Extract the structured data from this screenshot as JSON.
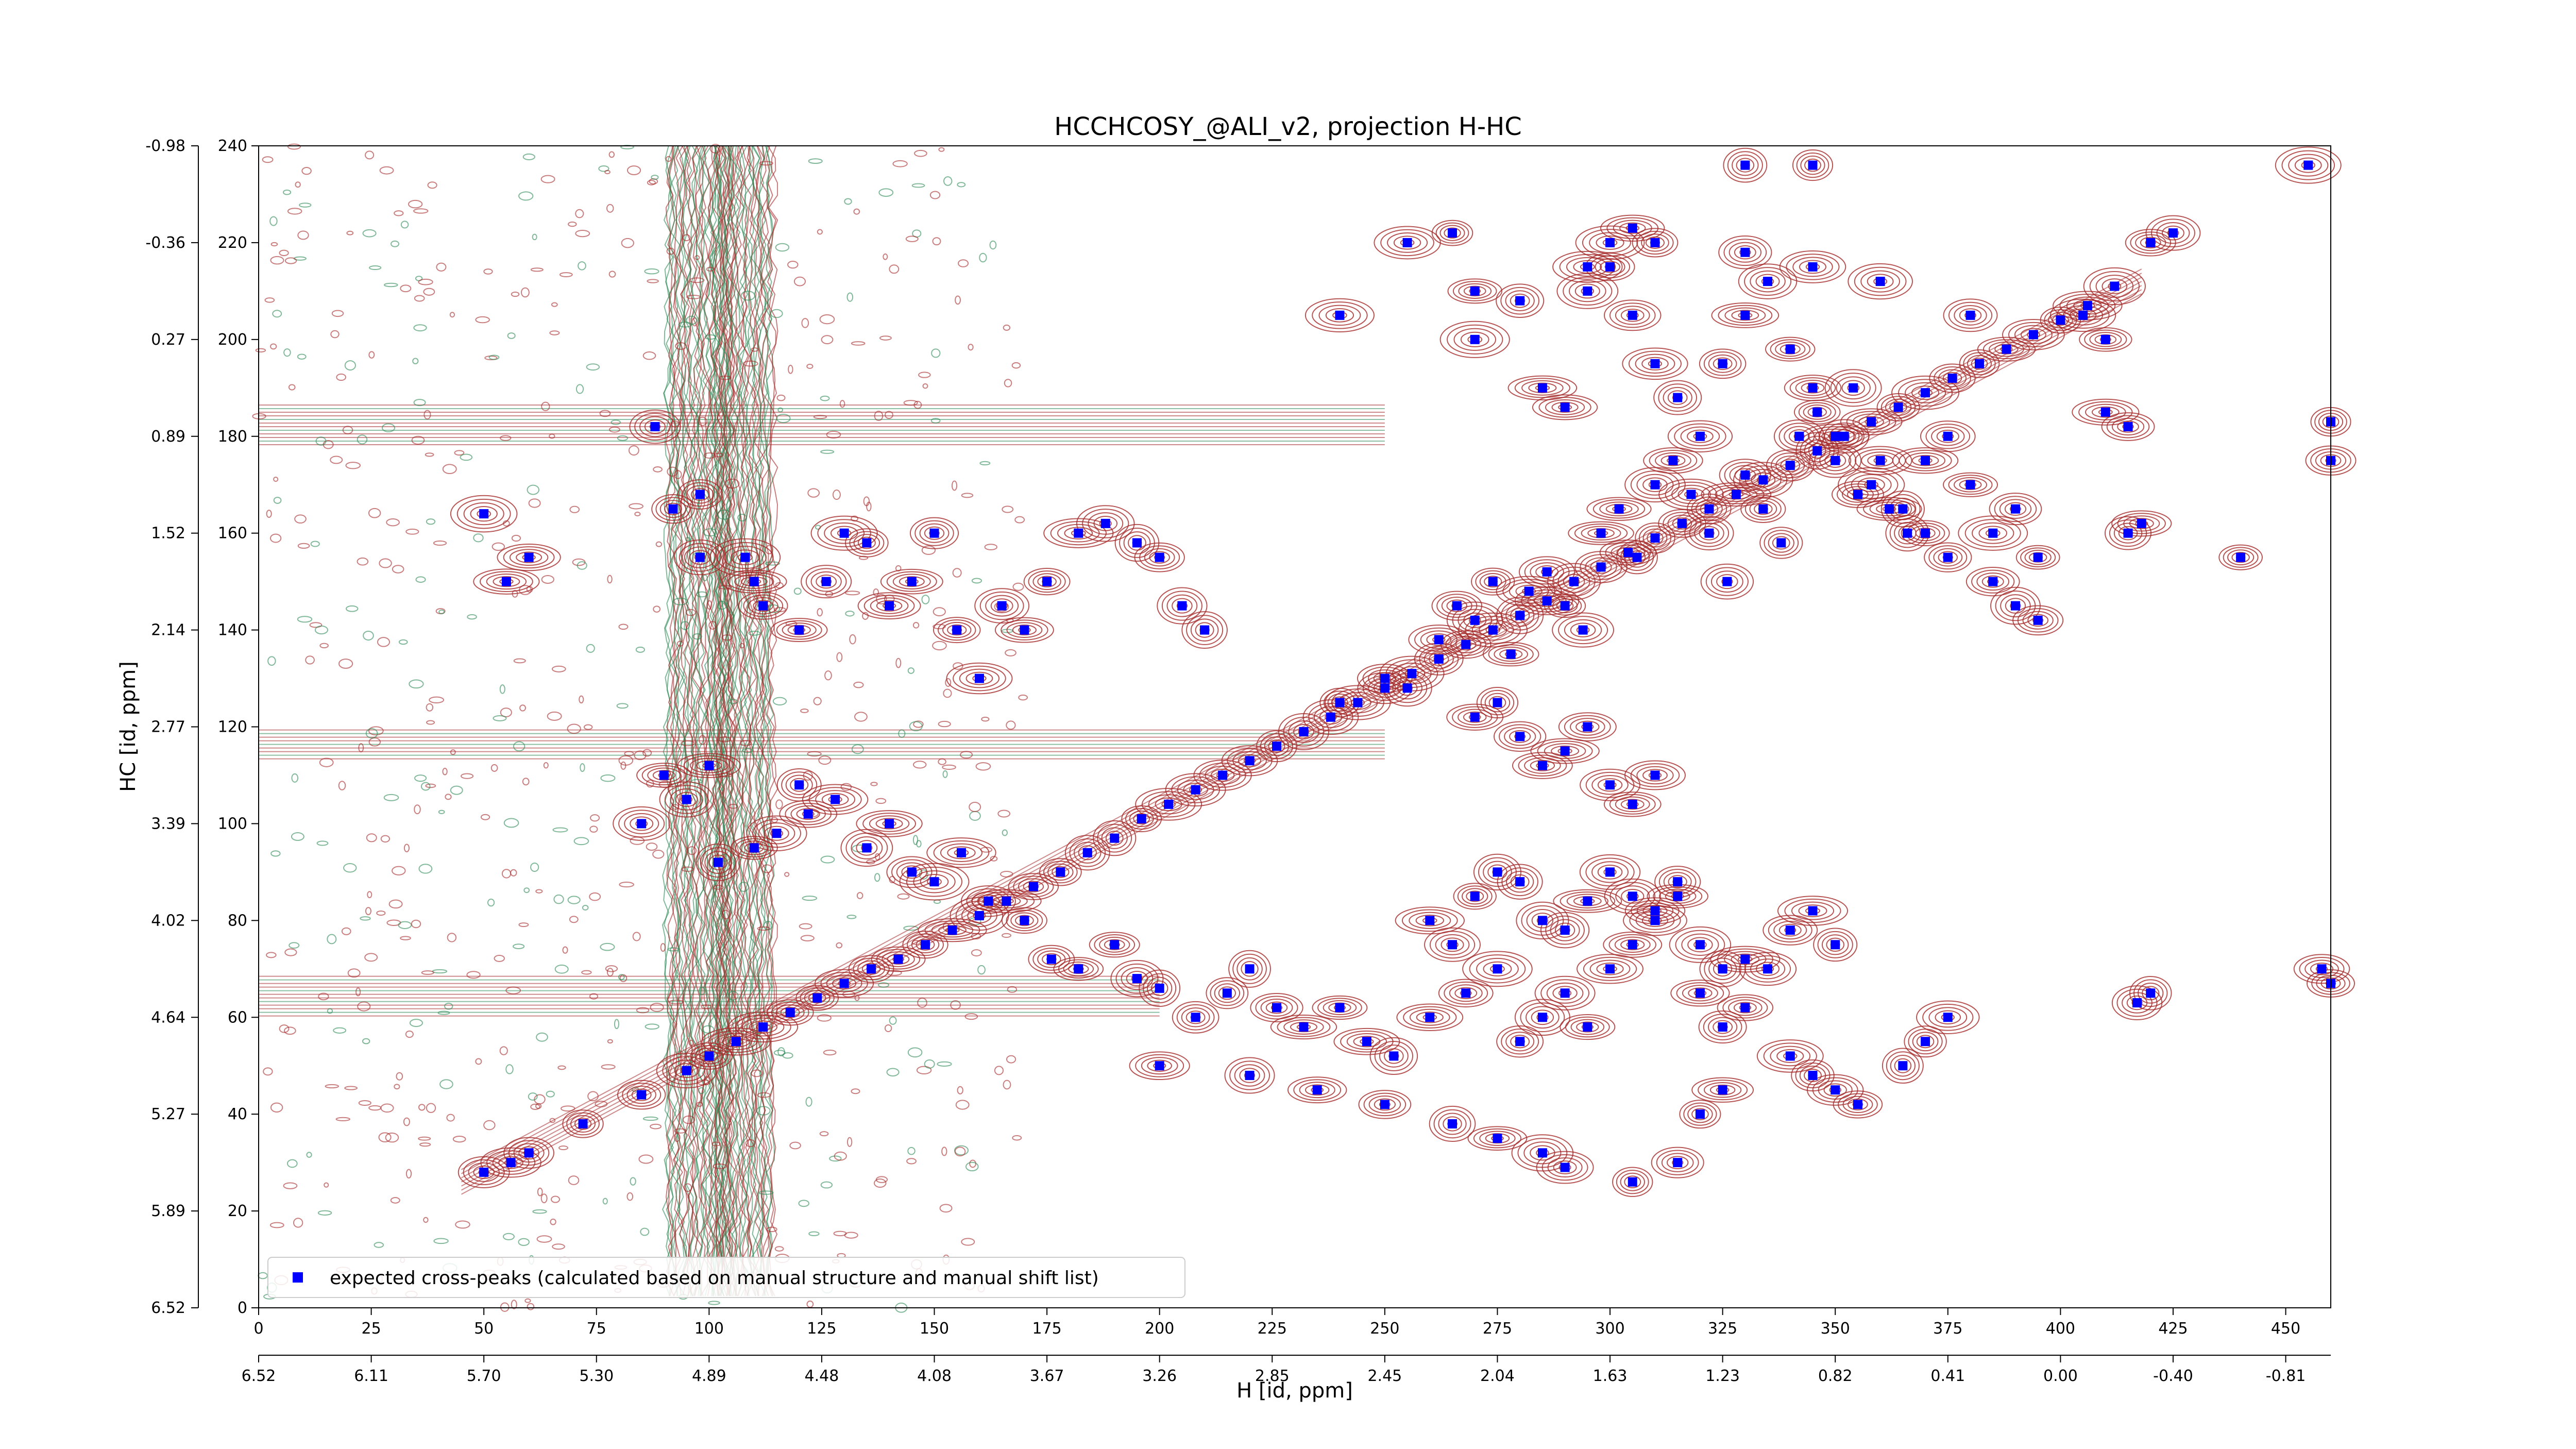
{
  "chart_data": {
    "type": "scatter",
    "title": "HCCHCOSY_@ALI_v2, projection H-HC",
    "xlabel": "H [id, ppm]",
    "ylabel": "HC [id, ppm]",
    "x_index_range": [
      0,
      460
    ],
    "y_index_range": [
      0,
      240
    ],
    "x_index_ticks": [
      0,
      25,
      50,
      75,
      100,
      125,
      150,
      175,
      200,
      225,
      250,
      275,
      300,
      325,
      350,
      375,
      400,
      425,
      450
    ],
    "y_index_ticks": [
      0,
      20,
      40,
      60,
      80,
      100,
      120,
      140,
      160,
      180,
      200,
      220,
      240
    ],
    "x_ppm_tick_labels": [
      "6.52",
      "6.11",
      "5.70",
      "5.30",
      "4.89",
      "4.48",
      "4.08",
      "3.67",
      "3.26",
      "2.85",
      "2.45",
      "2.04",
      "1.63",
      "1.23",
      "0.82",
      "0.41",
      "0.00",
      "-0.40",
      "-0.81"
    ],
    "y_ppm_tick_labels": [
      "6.52",
      "5.89",
      "5.27",
      "4.64",
      "4.02",
      "3.39",
      "2.77",
      "2.14",
      "1.52",
      "0.89",
      "0.27",
      "-0.36",
      "-0.98"
    ],
    "grid": false,
    "legend_position": "bottom-left",
    "contour_colors": {
      "positive": "#a52a2a",
      "negative": "#2e8b57"
    },
    "series": [
      {
        "name": "expected cross-peaks (calculated based on manual structure and manual shift list)",
        "marker": "square",
        "color": "#0000ff",
        "points": [
          [
            50,
            28
          ],
          [
            56,
            30
          ],
          [
            60,
            32
          ],
          [
            72,
            38
          ],
          [
            85,
            44
          ],
          [
            95,
            49
          ],
          [
            100,
            52
          ],
          [
            106,
            55
          ],
          [
            112,
            58
          ],
          [
            118,
            61
          ],
          [
            124,
            64
          ],
          [
            130,
            67
          ],
          [
            136,
            70
          ],
          [
            142,
            72
          ],
          [
            148,
            75
          ],
          [
            154,
            78
          ],
          [
            160,
            81
          ],
          [
            166,
            84
          ],
          [
            172,
            87
          ],
          [
            178,
            90
          ],
          [
            184,
            94
          ],
          [
            190,
            97
          ],
          [
            196,
            101
          ],
          [
            202,
            104
          ],
          [
            208,
            107
          ],
          [
            214,
            110
          ],
          [
            220,
            113
          ],
          [
            226,
            116
          ],
          [
            232,
            119
          ],
          [
            238,
            122
          ],
          [
            244,
            125
          ],
          [
            250,
            128
          ],
          [
            256,
            131
          ],
          [
            262,
            134
          ],
          [
            268,
            137
          ],
          [
            274,
            140
          ],
          [
            280,
            143
          ],
          [
            286,
            146
          ],
          [
            292,
            150
          ],
          [
            298,
            153
          ],
          [
            304,
            156
          ],
          [
            310,
            159
          ],
          [
            316,
            162
          ],
          [
            322,
            165
          ],
          [
            328,
            168
          ],
          [
            334,
            171
          ],
          [
            340,
            174
          ],
          [
            346,
            177
          ],
          [
            352,
            180
          ],
          [
            358,
            183
          ],
          [
            364,
            186
          ],
          [
            370,
            189
          ],
          [
            376,
            192
          ],
          [
            382,
            195
          ],
          [
            388,
            198
          ],
          [
            394,
            201
          ],
          [
            400,
            204
          ],
          [
            406,
            207
          ],
          [
            412,
            211
          ],
          [
            50,
            164
          ],
          [
            55,
            150
          ],
          [
            60,
            155
          ],
          [
            88,
            182
          ],
          [
            92,
            165
          ],
          [
            98,
            168
          ],
          [
            98,
            155
          ],
          [
            108,
            155
          ],
          [
            110,
            150
          ],
          [
            112,
            145
          ],
          [
            120,
            140
          ],
          [
            126,
            150
          ],
          [
            130,
            160
          ],
          [
            135,
            158
          ],
          [
            140,
            145
          ],
          [
            145,
            150
          ],
          [
            150,
            160
          ],
          [
            155,
            140
          ],
          [
            160,
            130
          ],
          [
            165,
            145
          ],
          [
            170,
            140
          ],
          [
            175,
            150
          ],
          [
            182,
            160
          ],
          [
            188,
            162
          ],
          [
            195,
            158
          ],
          [
            200,
            155
          ],
          [
            205,
            145
          ],
          [
            210,
            140
          ],
          [
            85,
            100
          ],
          [
            90,
            110
          ],
          [
            95,
            105
          ],
          [
            100,
            112
          ],
          [
            102,
            92
          ],
          [
            110,
            95
          ],
          [
            115,
            98
          ],
          [
            120,
            108
          ],
          [
            122,
            102
          ],
          [
            128,
            105
          ],
          [
            135,
            95
          ],
          [
            140,
            100
          ],
          [
            145,
            90
          ],
          [
            150,
            88
          ],
          [
            156,
            94
          ],
          [
            162,
            84
          ],
          [
            170,
            80
          ],
          [
            176,
            72
          ],
          [
            182,
            70
          ],
          [
            190,
            75
          ],
          [
            195,
            68
          ],
          [
            200,
            66
          ],
          [
            208,
            60
          ],
          [
            215,
            65
          ],
          [
            220,
            70
          ],
          [
            226,
            62
          ],
          [
            232,
            58
          ],
          [
            240,
            62
          ],
          [
            246,
            55
          ],
          [
            252,
            52
          ],
          [
            260,
            60
          ],
          [
            268,
            65
          ],
          [
            275,
            70
          ],
          [
            280,
            55
          ],
          [
            285,
            60
          ],
          [
            290,
            65
          ],
          [
            295,
            58
          ],
          [
            300,
            70
          ],
          [
            305,
            75
          ],
          [
            310,
            80
          ],
          [
            315,
            85
          ],
          [
            320,
            65
          ],
          [
            325,
            58
          ],
          [
            330,
            62
          ],
          [
            335,
            70
          ],
          [
            340,
            78
          ],
          [
            345,
            82
          ],
          [
            350,
            75
          ],
          [
            260,
            80
          ],
          [
            265,
            75
          ],
          [
            270,
            85
          ],
          [
            275,
            90
          ],
          [
            280,
            88
          ],
          [
            285,
            80
          ],
          [
            290,
            78
          ],
          [
            295,
            84
          ],
          [
            300,
            90
          ],
          [
            305,
            85
          ],
          [
            310,
            82
          ],
          [
            315,
            88
          ],
          [
            320,
            75
          ],
          [
            325,
            70
          ],
          [
            330,
            72
          ],
          [
            240,
            125
          ],
          [
            250,
            130
          ],
          [
            255,
            128
          ],
          [
            262,
            138
          ],
          [
            266,
            145
          ],
          [
            270,
            142
          ],
          [
            274,
            150
          ],
          [
            278,
            135
          ],
          [
            282,
            148
          ],
          [
            286,
            152
          ],
          [
            290,
            145
          ],
          [
            294,
            140
          ],
          [
            298,
            160
          ],
          [
            302,
            165
          ],
          [
            306,
            155
          ],
          [
            310,
            170
          ],
          [
            314,
            175
          ],
          [
            318,
            168
          ],
          [
            322,
            160
          ],
          [
            326,
            150
          ],
          [
            330,
            172
          ],
          [
            334,
            165
          ],
          [
            338,
            158
          ],
          [
            342,
            180
          ],
          [
            346,
            185
          ],
          [
            350,
            175
          ],
          [
            354,
            190
          ],
          [
            358,
            170
          ],
          [
            362,
            165
          ],
          [
            366,
            160
          ],
          [
            370,
            175
          ],
          [
            375,
            180
          ],
          [
            380,
            170
          ],
          [
            385,
            160
          ],
          [
            390,
            165
          ],
          [
            395,
            155
          ],
          [
            270,
            200
          ],
          [
            280,
            208
          ],
          [
            285,
            190
          ],
          [
            290,
            186
          ],
          [
            295,
            210
          ],
          [
            300,
            215
          ],
          [
            305,
            205
          ],
          [
            310,
            195
          ],
          [
            315,
            188
          ],
          [
            320,
            180
          ],
          [
            325,
            195
          ],
          [
            330,
            205
          ],
          [
            335,
            212
          ],
          [
            340,
            198
          ],
          [
            345,
            190
          ],
          [
            350,
            180
          ],
          [
            355,
            168
          ],
          [
            360,
            175
          ],
          [
            365,
            165
          ],
          [
            370,
            160
          ],
          [
            375,
            155
          ],
          [
            385,
            150
          ],
          [
            390,
            145
          ],
          [
            395,
            142
          ],
          [
            300,
            108
          ],
          [
            305,
            104
          ],
          [
            310,
            110
          ],
          [
            295,
            120
          ],
          [
            290,
            115
          ],
          [
            285,
            112
          ],
          [
            280,
            118
          ],
          [
            275,
            125
          ],
          [
            270,
            122
          ],
          [
            240,
            205
          ],
          [
            255,
            220
          ],
          [
            265,
            222
          ],
          [
            270,
            210
          ],
          [
            295,
            215
          ],
          [
            310,
            220
          ],
          [
            330,
            218
          ],
          [
            345,
            215
          ],
          [
            360,
            212
          ],
          [
            380,
            205
          ],
          [
            405,
            205
          ],
          [
            410,
            200
          ],
          [
            410,
            185
          ],
          [
            415,
            182
          ],
          [
            420,
            220
          ],
          [
            425,
            222
          ],
          [
            415,
            160
          ],
          [
            418,
            162
          ],
          [
            440,
            155
          ],
          [
            460,
            175
          ],
          [
            460,
            183
          ],
          [
            460,
            67
          ],
          [
            458,
            70
          ],
          [
            420,
            65
          ],
          [
            417,
            63
          ],
          [
            300,
            220
          ],
          [
            305,
            223
          ],
          [
            330,
            236
          ],
          [
            345,
            236
          ],
          [
            455,
            236
          ],
          [
            200,
            50
          ],
          [
            220,
            48
          ],
          [
            235,
            45
          ],
          [
            250,
            42
          ],
          [
            265,
            38
          ],
          [
            275,
            35
          ],
          [
            285,
            32
          ],
          [
            290,
            29
          ],
          [
            305,
            26
          ],
          [
            315,
            30
          ],
          [
            320,
            40
          ],
          [
            325,
            45
          ],
          [
            340,
            52
          ],
          [
            345,
            48
          ],
          [
            350,
            45
          ],
          [
            355,
            42
          ],
          [
            365,
            50
          ],
          [
            370,
            55
          ],
          [
            375,
            60
          ]
        ]
      }
    ]
  }
}
